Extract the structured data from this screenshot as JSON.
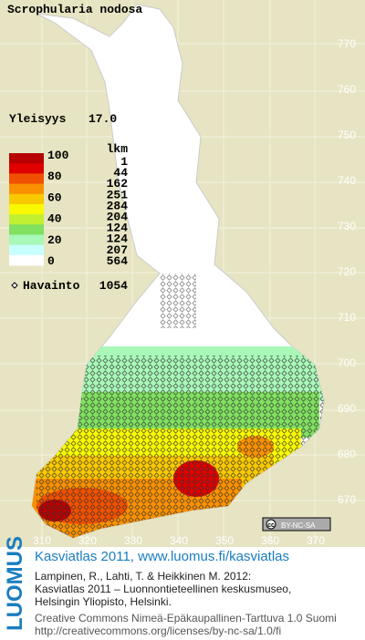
{
  "title": "Scrophularia nodosa",
  "frequency": {
    "label": "Yleisyys",
    "value": "17.0"
  },
  "legend": {
    "percent_labels": [
      "100",
      "80",
      "60",
      "40",
      "20",
      "0"
    ],
    "count_header": "lkm",
    "counts": [
      1,
      44,
      162,
      251,
      284,
      204,
      124,
      124,
      207,
      564
    ],
    "colors": [
      "#b80000",
      "#e00000",
      "#f05000",
      "#f89000",
      "#f8c800",
      "#f8f800",
      "#c0f030",
      "#80e060",
      "#a8f8b8",
      "#c8ffff",
      "#ffffff"
    ]
  },
  "observations": {
    "label": "Havainto",
    "count": 1054
  },
  "axes": {
    "y_labels": [
      770,
      760,
      750,
      740,
      730,
      720,
      710,
      700,
      690,
      680,
      670
    ],
    "x_labels": [
      310,
      320,
      330,
      340,
      350,
      360,
      370
    ]
  },
  "license_badge": "BY-NC-SA",
  "footer": {
    "logo": "LUOMUS",
    "headline": "Kasviatlas 2011, www.luomus.fi/kasviatlas",
    "citation": [
      "Lampinen, R., Lahti, T. & Heikkinen M. 2012:",
      "Kasviatlas 2011 – Luonnontieteellinen keskusmuseo,",
      "Helsingin Yliopisto, Helsinki."
    ],
    "license": [
      "Creative Commons Nimeä-Epäkaupallinen-Tarttuva 1.0 Suomi",
      "http://creativecommons.org/licenses/by-nc-sa/1.0/fi"
    ]
  }
}
